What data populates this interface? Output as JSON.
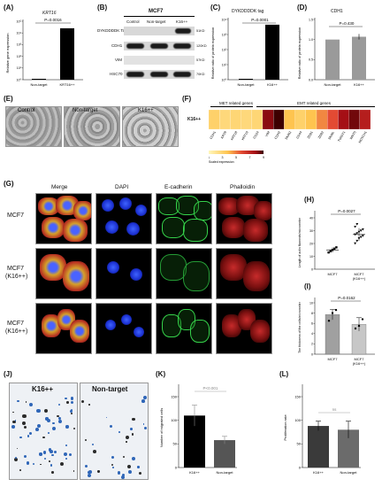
{
  "panels": {
    "A": {
      "letter": "(A)",
      "title": "KRT16",
      "pvalue": "P=0.0016",
      "ylabel": "Relative gene expression",
      "yticks": [
        "10⁵",
        "10⁴",
        "10³",
        "10²",
        "10¹",
        "10⁰"
      ],
      "categories": [
        "Non-target",
        "KRT16++"
      ]
    },
    "B": {
      "letter": "(B)",
      "cell_line": "MCF7",
      "lanes": [
        "Control",
        "Non-target",
        "K16++"
      ],
      "rows": [
        {
          "label": "DYKDDDDK Tag",
          "mw": "51KD"
        },
        {
          "label": "CDH1",
          "mw": "120KD"
        },
        {
          "label": "VIM",
          "mw": "57KD"
        },
        {
          "label": "HSC70",
          "mw": "70KD"
        }
      ]
    },
    "C": {
      "letter": "(C)",
      "title": "DYKDDDDK tag",
      "pvalue": "P=0.0001",
      "ylabel": "Relative ratio of protein expression",
      "yticks": [
        "10⁴",
        "10³",
        "10²",
        "10¹",
        "10⁰"
      ],
      "categories": [
        "Non-target",
        "K16++"
      ]
    },
    "D": {
      "letter": "(D)",
      "title": "CDH1",
      "pvalue": "P=0.430",
      "ylabel": "Relative ratio of protein expression",
      "yticks": [
        "1.5",
        "1.0",
        "0.5",
        "0.0"
      ],
      "categories": [
        "Non-target",
        "K16++"
      ]
    },
    "E": {
      "letter": "(E)",
      "labels": [
        "Control",
        "Non-target",
        "K16++"
      ]
    },
    "F": {
      "letter": "(F)",
      "row_label": "K16++",
      "group1": "MET related genes",
      "group2": "EMT related genes",
      "genes": [
        "CDH1",
        "KRT8",
        "KRT18",
        "KRT19",
        "CD24",
        "VIM",
        "CDH2",
        "SNAI2",
        "CD44",
        "ZEB1",
        "ZEB2",
        "SNAIL",
        "TWIST1",
        "WNT5",
        "NOTCH1"
      ],
      "scale_ticks": [
        "1",
        "3",
        "5",
        "7",
        "9"
      ],
      "scale_label": "Scaled expression"
    },
    "G": {
      "letter": "(G)",
      "columns": [
        "Merge",
        "DAPI",
        "E-cadherin",
        "Phalloidin"
      ],
      "rows": [
        {
          "line1": "MCF7",
          "line2": ""
        },
        {
          "line1": "MCF7",
          "line2": "(K16++)"
        },
        {
          "line1": "MCF7",
          "line2": "(K16++)"
        }
      ]
    },
    "H": {
      "letter": "(H)",
      "pvalue": "P=0.0027",
      "ylabel": "Length of actin filaments/micrometer",
      "yticks": [
        "40",
        "30",
        "20",
        "10",
        "0"
      ],
      "categories": [
        "MCF7",
        "MCF7",
        "(K16++)"
      ]
    },
    "I": {
      "letter": "(I)",
      "pvalue": "P=0.0162",
      "ylabel": "The thickness of the cells/micrometer",
      "yticks": [
        "10",
        "8",
        "6",
        "4",
        "2",
        "0"
      ],
      "categories": [
        "MCF7",
        "MCF7",
        "(K16++)"
      ]
    },
    "J": {
      "letter": "(J)",
      "labels": [
        "K16++",
        "Non-target"
      ]
    },
    "K": {
      "letter": "(K)",
      "pvalue": "P<0.001",
      "ylabel": "Number of migrated cells",
      "yticks": [
        "150",
        "100",
        "50",
        "0"
      ],
      "categories": [
        "K16++",
        "Non-target"
      ]
    },
    "L": {
      "letter": "(L)",
      "pvalue": "ns",
      "ylabel": "Proliferation rate",
      "yticks": [
        "150",
        "100",
        "50",
        "0"
      ],
      "categories": [
        "K16++",
        "Non-target"
      ]
    }
  },
  "chart_data": [
    {
      "panel": "A",
      "type": "bar",
      "title": "KRT16",
      "categories": [
        "Non-target",
        "KRT16++"
      ],
      "values": [
        1,
        25000
      ],
      "ylabel": "Relative gene expression",
      "yscale": "log",
      "ylim": [
        1,
        100000
      ],
      "pvalue": "P=0.0016"
    },
    {
      "panel": "C",
      "type": "bar",
      "title": "DYKDDDDK tag",
      "categories": [
        "Non-target",
        "K16++"
      ],
      "values": [
        1,
        4500
      ],
      "ylabel": "Relative ratio of protein expression",
      "yscale": "log",
      "ylim": [
        1,
        10000
      ],
      "pvalue": "P=0.0001"
    },
    {
      "panel": "D",
      "type": "bar",
      "title": "CDH1",
      "categories": [
        "Non-target",
        "K16++"
      ],
      "values": [
        1.0,
        1.07
      ],
      "errors": [
        0,
        0.07
      ],
      "ylabel": "Relative ratio of protein expression",
      "ylim": [
        0,
        1.5
      ],
      "pvalue": "P=0.430"
    },
    {
      "panel": "F",
      "type": "heatmap",
      "row": "K16++",
      "genes": [
        "CDH1",
        "KRT8",
        "KRT18",
        "KRT19",
        "CD24",
        "VIM",
        "CDH2",
        "SNAI2",
        "CD44",
        "ZEB1",
        "ZEB2",
        "SNAIL",
        "TWIST1",
        "WNT5",
        "NOTCH1"
      ],
      "values": [
        2.5,
        2.2,
        2.3,
        2.2,
        2.3,
        7.5,
        9,
        3,
        2.5,
        3,
        4,
        5,
        7,
        8,
        6.5
      ],
      "scale": [
        1,
        9
      ]
    },
    {
      "panel": "H",
      "type": "scatter",
      "categories": [
        "MCF7",
        "MCF7 (K16++)"
      ],
      "ylabel": "Length of actin filaments/micrometer",
      "ylim": [
        0,
        40
      ],
      "means": [
        15,
        27
      ],
      "errors": [
        2,
        5
      ],
      "points": [
        [
          13,
          14,
          15,
          16,
          17
        ],
        [
          20,
          22,
          24,
          25,
          26,
          27,
          28,
          29,
          30,
          31,
          33,
          35
        ]
      ],
      "pvalue": "P=0.0027"
    },
    {
      "panel": "I",
      "type": "bar",
      "categories": [
        "MCF7",
        "MCF7 (K16++)"
      ],
      "values": [
        7.7,
        5.8
      ],
      "errors": [
        1.0,
        1.3
      ],
      "ylabel": "The thickness of the cells/micrometer",
      "ylim": [
        0,
        10
      ],
      "points": [
        [
          6.5,
          8.0,
          8.6
        ],
        [
          5.0,
          5.5,
          6.8
        ]
      ],
      "pvalue": "P=0.0162"
    },
    {
      "panel": "K",
      "type": "bar",
      "categories": [
        "K16++",
        "Non-target"
      ],
      "values": [
        110,
        58
      ],
      "errors": [
        22,
        8
      ],
      "ylabel": "Number of migrated cells",
      "ylim": [
        0,
        150
      ],
      "pvalue": "P<0.001"
    },
    {
      "panel": "L",
      "type": "bar",
      "categories": [
        "K16++",
        "Non-target"
      ],
      "values": [
        88,
        80
      ],
      "errors": [
        10,
        18
      ],
      "ylabel": "Proliferation rate",
      "ylim": [
        0,
        150
      ],
      "pvalue": "ns"
    }
  ]
}
